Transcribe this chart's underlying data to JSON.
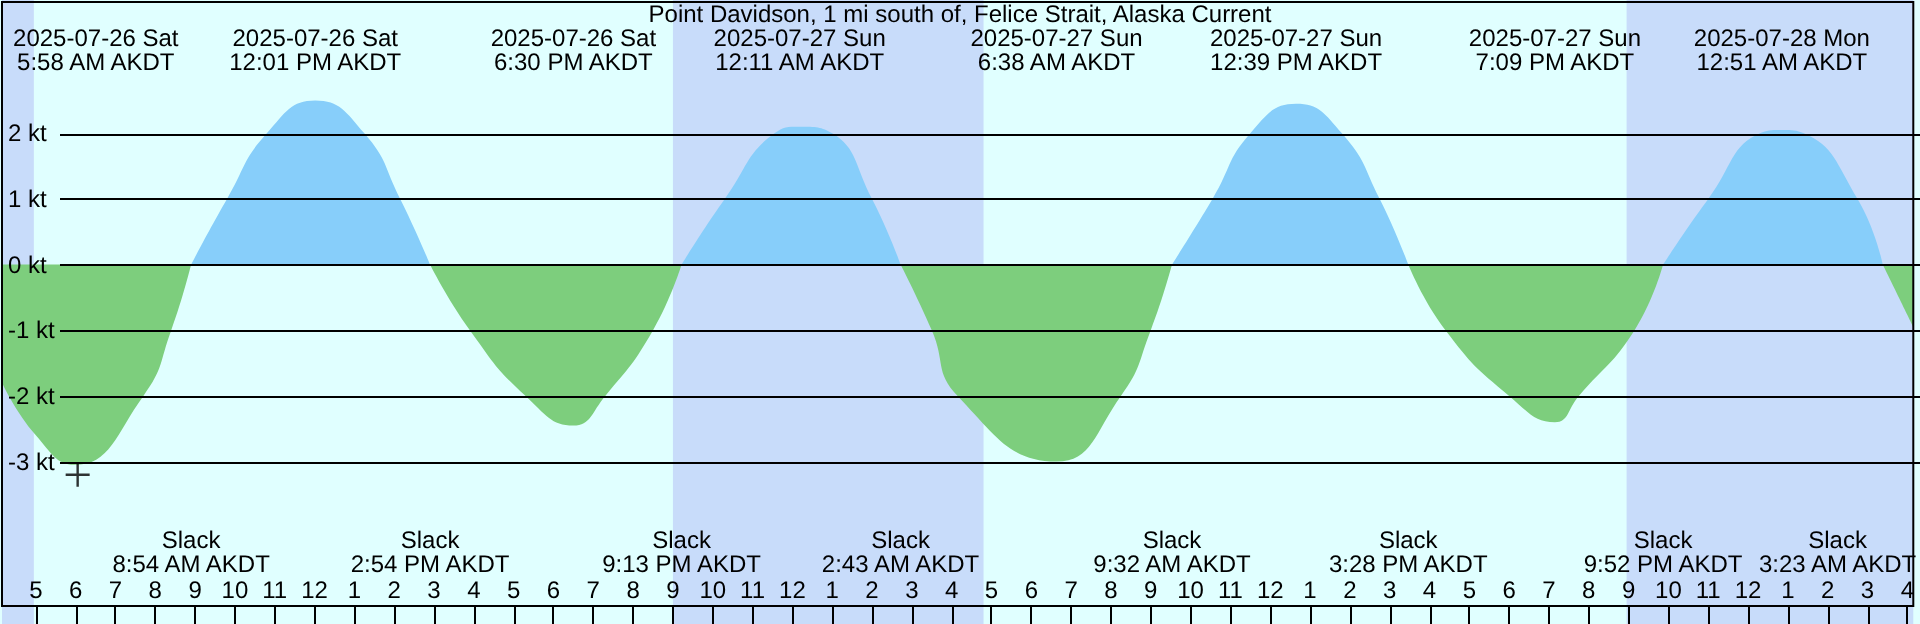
{
  "chart_data": {
    "type": "area",
    "title": "Point Davidson, 1 mi south of, Felice Strait, Alaska Current",
    "x": [
      "2025-07-26T04:09",
      "2025-07-26T05:00",
      "2025-07-26T05:58",
      "2025-07-26T07:42",
      "2025-07-26T08:24",
      "2025-07-26T08:54",
      "2025-07-26T09:48",
      "2025-07-26T10:48",
      "2025-07-26T12:01",
      "2025-07-26T13:15",
      "2025-07-26T14:09",
      "2025-07-26T14:54",
      "2025-07-26T15:54",
      "2025-07-26T17:18",
      "2025-07-26T18:30",
      "2025-07-26T19:18",
      "2025-07-26T20:30",
      "2025-07-26T21:13",
      "2025-07-26T22:18",
      "2025-07-26T23:33",
      "2025-07-27T00:11",
      "2025-07-27T01:00",
      "2025-07-27T02:00",
      "2025-07-27T02:43",
      "2025-07-27T03:30",
      "2025-07-27T04:09",
      "2025-07-27T06:38",
      "2025-07-27T08:15",
      "2025-07-27T09:00",
      "2025-07-27T09:32",
      "2025-07-27T10:33",
      "2025-07-27T11:30",
      "2025-07-27T12:39",
      "2025-07-27T13:48",
      "2025-07-27T14:45",
      "2025-07-27T15:28",
      "2025-07-27T16:24",
      "2025-07-27T18:00",
      "2025-07-27T19:09",
      "2025-07-27T19:45",
      "2025-07-27T21:09",
      "2025-07-27T21:52",
      "2025-07-27T23:00",
      "2025-07-28T00:18",
      "2025-07-28T00:51",
      "2025-07-28T01:24",
      "2025-07-28T02:45",
      "2025-07-28T03:23",
      "2025-07-28T04:09"
    ],
    "series": [
      {
        "color": "#87cefa",
        "values": [
          null,
          null,
          null,
          null,
          null,
          0,
          1,
          2,
          2.5,
          2,
          1,
          0,
          null,
          null,
          null,
          null,
          null,
          0,
          1,
          2,
          2.1,
          2,
          1,
          0,
          null,
          null,
          null,
          null,
          null,
          0,
          1,
          2,
          2.45,
          2,
          1,
          0,
          null,
          null,
          null,
          null,
          null,
          0,
          1,
          2,
          2.05,
          2,
          1,
          0,
          null
        ]
      },
      {
        "color": "#7dce7d",
        "values": [
          -1.8,
          -2.6,
          -3.05,
          -2,
          -1,
          0,
          null,
          null,
          null,
          null,
          null,
          0,
          -1,
          -2,
          -2.45,
          -2,
          -1,
          0,
          null,
          null,
          null,
          null,
          null,
          0,
          -1,
          -2,
          -3,
          -2,
          -1,
          0,
          null,
          null,
          null,
          null,
          null,
          0,
          -1,
          -2,
          -2.4,
          -2,
          -1,
          0,
          null,
          null,
          null,
          null,
          null,
          0,
          -0.95
        ]
      },
      {
        "type": "scatter",
        "marker": "cross",
        "color": "#000000",
        "x": [
          "2025-07-26T06:03"
        ],
        "values": [
          -3.2
        ]
      }
    ],
    "xlim": [
      "2025-07-26T04:09",
      "2025-07-28T04:09"
    ],
    "xticks": [
      {
        "value": "2025-07-26T05:00",
        "label": "5"
      },
      {
        "value": "2025-07-26T06:00",
        "label": "6"
      },
      {
        "value": "2025-07-26T07:00",
        "label": "7"
      },
      {
        "value": "2025-07-26T08:00",
        "label": "8"
      },
      {
        "value": "2025-07-26T09:00",
        "label": "9"
      },
      {
        "value": "2025-07-26T10:00",
        "label": "10"
      },
      {
        "value": "2025-07-26T11:00",
        "label": "11"
      },
      {
        "value": "2025-07-26T12:00",
        "label": "12"
      },
      {
        "value": "2025-07-26T13:00",
        "label": "1"
      },
      {
        "value": "2025-07-26T14:00",
        "label": "2"
      },
      {
        "value": "2025-07-26T15:00",
        "label": "3"
      },
      {
        "value": "2025-07-26T16:00",
        "label": "4"
      },
      {
        "value": "2025-07-26T17:00",
        "label": "5"
      },
      {
        "value": "2025-07-26T18:00",
        "label": "6"
      },
      {
        "value": "2025-07-26T19:00",
        "label": "7"
      },
      {
        "value": "2025-07-26T20:00",
        "label": "8"
      },
      {
        "value": "2025-07-26T21:00",
        "label": "9"
      },
      {
        "value": "2025-07-26T22:00",
        "label": "10"
      },
      {
        "value": "2025-07-26T23:00",
        "label": "11"
      },
      {
        "value": "2025-07-27T00:00",
        "label": "12"
      },
      {
        "value": "2025-07-27T01:00",
        "label": "1"
      },
      {
        "value": "2025-07-27T02:00",
        "label": "2"
      },
      {
        "value": "2025-07-27T03:00",
        "label": "3"
      },
      {
        "value": "2025-07-27T04:00",
        "label": "4"
      },
      {
        "value": "2025-07-27T05:00",
        "label": "5"
      },
      {
        "value": "2025-07-27T06:00",
        "label": "6"
      },
      {
        "value": "2025-07-27T07:00",
        "label": "7"
      },
      {
        "value": "2025-07-27T08:00",
        "label": "8"
      },
      {
        "value": "2025-07-27T09:00",
        "label": "9"
      },
      {
        "value": "2025-07-27T10:00",
        "label": "10"
      },
      {
        "value": "2025-07-27T11:00",
        "label": "11"
      },
      {
        "value": "2025-07-27T12:00",
        "label": "12"
      },
      {
        "value": "2025-07-27T13:00",
        "label": "1"
      },
      {
        "value": "2025-07-27T14:00",
        "label": "2"
      },
      {
        "value": "2025-07-27T15:00",
        "label": "3"
      },
      {
        "value": "2025-07-27T16:00",
        "label": "4"
      },
      {
        "value": "2025-07-27T17:00",
        "label": "5"
      },
      {
        "value": "2025-07-27T18:00",
        "label": "6"
      },
      {
        "value": "2025-07-27T19:00",
        "label": "7"
      },
      {
        "value": "2025-07-27T20:00",
        "label": "8"
      },
      {
        "value": "2025-07-27T21:00",
        "label": "9"
      },
      {
        "value": "2025-07-27T22:00",
        "label": "10"
      },
      {
        "value": "2025-07-27T23:00",
        "label": "11"
      },
      {
        "value": "2025-07-28T00:00",
        "label": "12"
      },
      {
        "value": "2025-07-28T01:00",
        "label": "1"
      },
      {
        "value": "2025-07-28T02:00",
        "label": "2"
      },
      {
        "value": "2025-07-28T03:00",
        "label": "3"
      },
      {
        "value": "2025-07-28T04:00",
        "label": "4"
      }
    ],
    "ylim": [
      -5.2,
      4.0
    ],
    "yticks": [
      {
        "value": -3,
        "label": "-3 kt"
      },
      {
        "value": -2,
        "label": "-2 kt"
      },
      {
        "value": -1,
        "label": "-1 kt"
      },
      {
        "value": 0,
        "label": "0 kt"
      },
      {
        "value": 1,
        "label": "1 kt"
      },
      {
        "value": 2,
        "label": "2 kt"
      }
    ],
    "grid": "y",
    "bands": [
      {
        "axis": "x",
        "from": "2025-07-26T04:09",
        "to": "2025-07-26T04:57",
        "color": "#c8dcfa"
      },
      {
        "axis": "x",
        "from": "2025-07-26T21:00",
        "to": "2025-07-27T04:48",
        "color": "#c8dcfa"
      },
      {
        "axis": "x",
        "from": "2025-07-27T20:57",
        "to": "2025-07-28T04:09",
        "color": "#c8dcfa"
      }
    ],
    "annotations": [
      "2025-07-26 Sat\n5:58 AM AKDT",
      "2025-07-26 Sat\n12:01 PM AKDT",
      "2025-07-26 Sat\n6:30 PM AKDT",
      "2025-07-27 Sun\n12:11 AM AKDT",
      "2025-07-27 Sun\n6:38 AM AKDT",
      "2025-07-27 Sun\n12:39 PM AKDT",
      "2025-07-27 Sun\n7:09 PM AKDT",
      "2025-07-28 Mon\n12:51 AM AKDT",
      "Slack\n8:54 AM AKDT",
      "Slack\n2:54 PM AKDT",
      "Slack\n9:13 PM AKDT",
      "Slack\n2:43 AM AKDT",
      "Slack\n9:32 AM AKDT",
      "Slack\n3:28 PM AKDT",
      "Slack\n9:52 PM AKDT",
      "Slack\n3:23 AM AKDT"
    ]
  }
}
